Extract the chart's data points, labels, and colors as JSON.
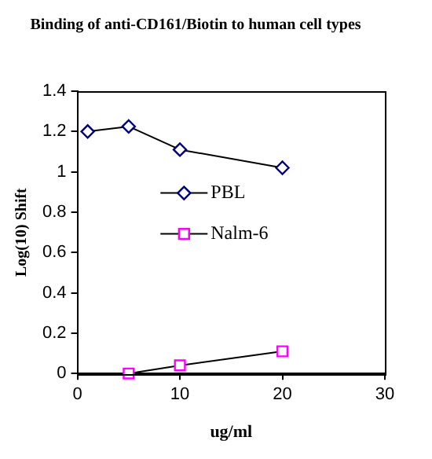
{
  "chart_data": {
    "type": "line",
    "title": "Binding of anti-CD161/Biotin to human cell types",
    "xlabel": "ug/ml",
    "ylabel": "Log(10) Shift",
    "xlim": [
      0,
      30
    ],
    "xticks": [
      0,
      10,
      20,
      30
    ],
    "ylim": [
      0,
      1.4
    ],
    "yticks": [
      0,
      0.2,
      0.4,
      0.6,
      0.8,
      1,
      1.2,
      1.4
    ],
    "grid": false,
    "legend": "center",
    "line_style": "solid",
    "series": [
      {
        "name": "PBL",
        "color": "#000080",
        "marker": "diamond",
        "x": [
          1,
          5,
          10,
          20
        ],
        "values": [
          1.2,
          1.225,
          1.11,
          1.02
        ]
      },
      {
        "name": "Nalm-6",
        "color": "#ff00ff",
        "marker": "square",
        "x": [
          5,
          10,
          20
        ],
        "values": [
          0,
          0.04,
          0.11
        ]
      }
    ]
  }
}
